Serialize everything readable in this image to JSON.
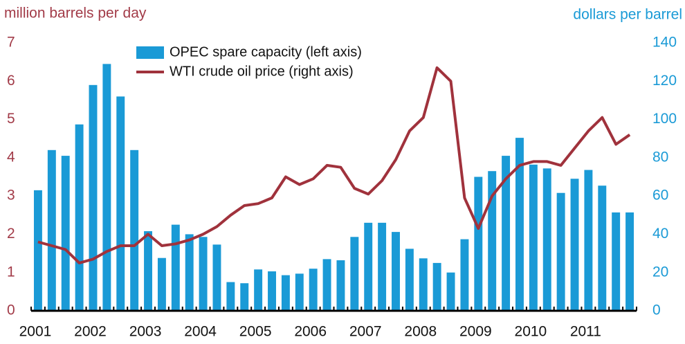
{
  "chart_data": {
    "type": "bar+line",
    "y_label": "million barrels per day",
    "y2_label": "dollars per barrel",
    "categories": [
      "2001",
      null,
      null,
      null,
      "2002",
      null,
      null,
      null,
      "2003",
      null,
      null,
      null,
      "2004",
      null,
      null,
      null,
      "2005",
      null,
      null,
      null,
      "2006",
      null,
      null,
      null,
      "2007",
      null,
      null,
      null,
      "2008",
      null,
      null,
      null,
      "2009",
      null,
      null,
      null,
      "2010",
      null,
      null,
      null,
      "2011",
      null,
      null,
      null
    ],
    "series": [
      {
        "name": "OPEC spare capacity (left axis)",
        "type": "bar",
        "color": "#1a9ad6",
        "axis": "y",
        "values": [
          3.15,
          4.2,
          4.05,
          4.87,
          5.9,
          6.45,
          5.6,
          4.2,
          2.08,
          1.38,
          2.25,
          2.0,
          1.93,
          1.73,
          0.75,
          0.72,
          1.08,
          1.03,
          0.93,
          0.97,
          1.1,
          1.35,
          1.32,
          1.93,
          2.3,
          2.3,
          2.06,
          1.62,
          1.37,
          1.25,
          1.0,
          1.87,
          3.5,
          3.65,
          4.05,
          4.52,
          3.82,
          3.72,
          3.08,
          3.45,
          3.68,
          3.27,
          2.57,
          2.57
        ]
      },
      {
        "name": "WTI crude oil price (right axis)",
        "type": "line",
        "color": "#a0323c",
        "axis": "y2",
        "values": [
          36,
          34,
          32,
          25,
          27,
          31,
          34,
          34,
          40,
          34,
          35,
          37,
          40,
          44,
          50,
          55,
          56,
          59,
          70,
          66,
          69,
          76,
          75,
          64,
          61,
          68,
          79,
          94,
          101,
          127,
          120,
          59,
          43,
          60,
          69,
          76,
          78,
          78,
          76,
          85,
          94,
          101,
          87,
          92
        ]
      }
    ],
    "ylim": [
      0,
      7
    ],
    "yticks": [
      0,
      1,
      2,
      3,
      4,
      5,
      6,
      7
    ],
    "y2lim": [
      0,
      140
    ],
    "y2ticks": [
      0,
      20,
      40,
      60,
      80,
      100,
      120,
      140
    ],
    "grid": false
  }
}
